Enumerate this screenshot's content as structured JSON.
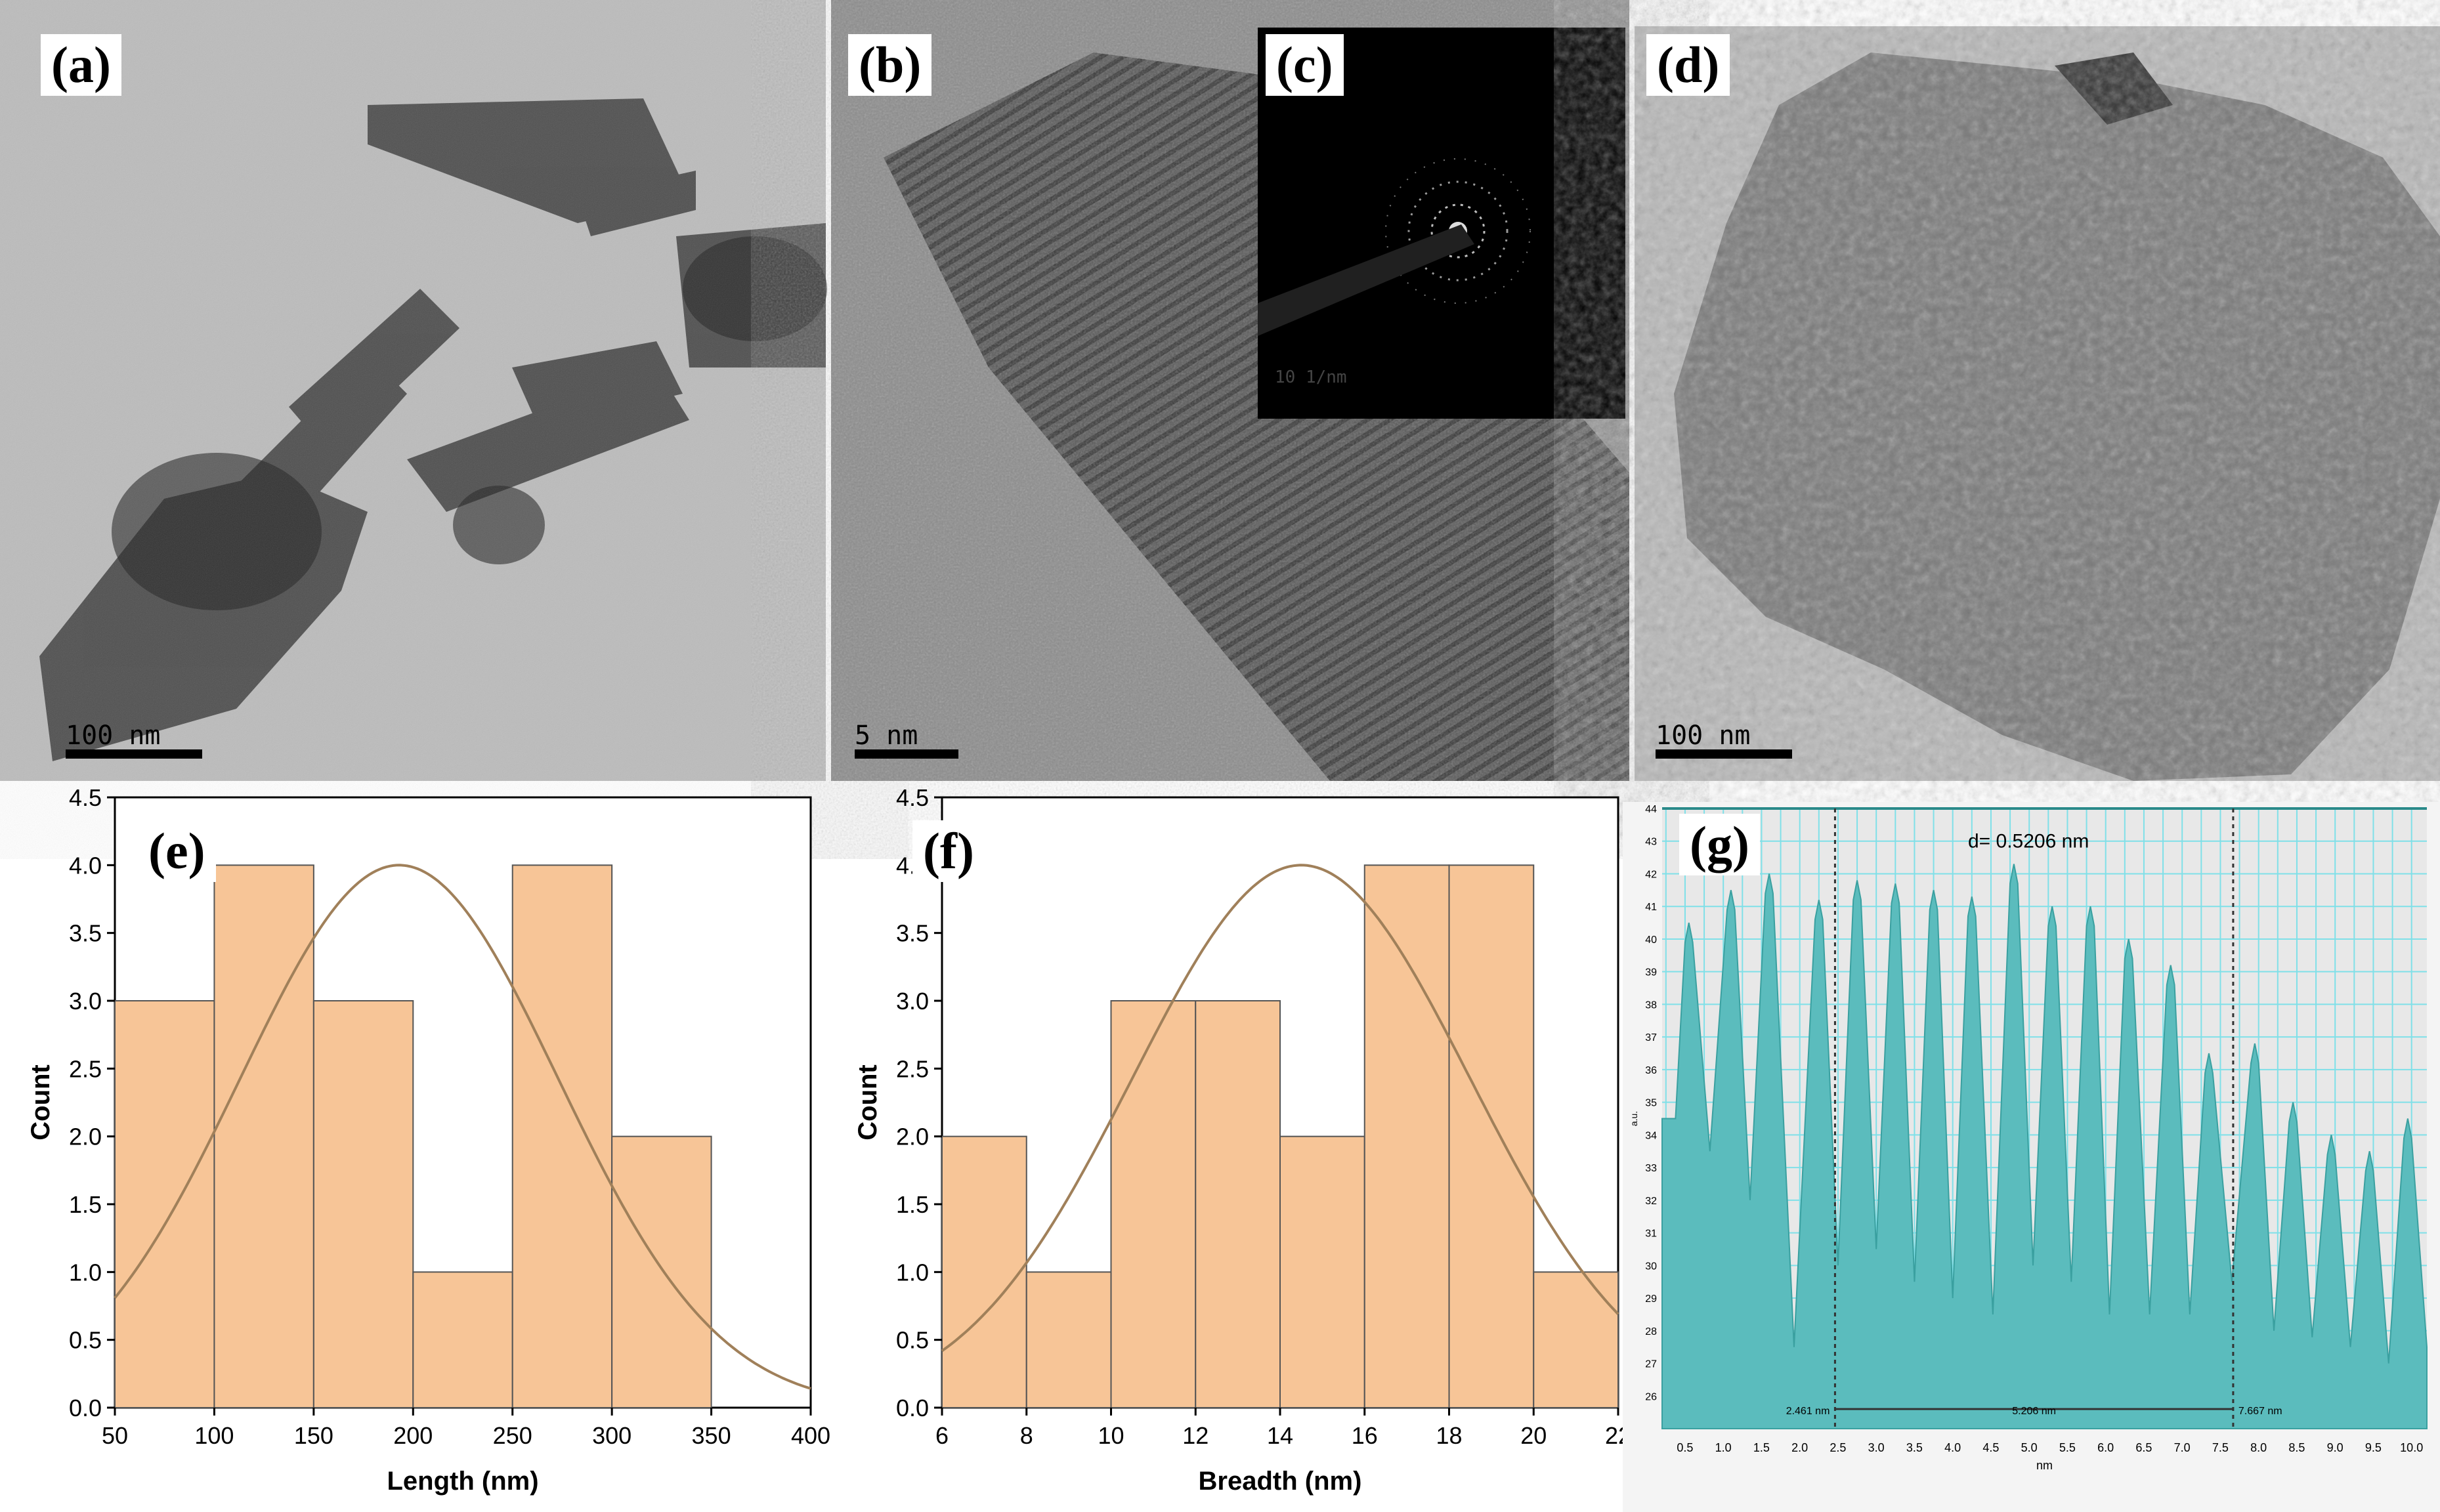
{
  "labels": {
    "a": "(a)",
    "b": "(b)",
    "c": "(c)",
    "d": "(d)",
    "e": "(e)",
    "f": "(f)",
    "g": "(g)"
  },
  "scalebars": {
    "a": "100 nm",
    "b": "5 nm",
    "c": "10 1/nm",
    "d": "100 nm"
  },
  "colors": {
    "bar_fill": "#f7c597",
    "bar_stroke": "#555555",
    "fit_curve": "#a0805a",
    "profile_fill": "#5bbcbd",
    "profile_grid": "#7fe0e8",
    "profile_bg": "#e8e8e8"
  },
  "chart_data": [
    {
      "panel": "e",
      "type": "bar",
      "xlabel": "Length (nm)",
      "ylabel": "Count",
      "xlim": [
        50,
        400
      ],
      "ylim": [
        0.0,
        4.5
      ],
      "xticks": [
        "50",
        "100",
        "150",
        "200",
        "250",
        "300",
        "350",
        "400"
      ],
      "yticks": [
        "0.0",
        "0.5",
        "1.0",
        "1.5",
        "2.0",
        "2.5",
        "3.0",
        "3.5",
        "4.0",
        "4.5"
      ],
      "bins": [
        [
          50,
          100
        ],
        [
          100,
          150
        ],
        [
          150,
          200
        ],
        [
          200,
          250
        ],
        [
          250,
          300
        ],
        [
          300,
          350
        ]
      ],
      "values": [
        3,
        4,
        3,
        1,
        4,
        2
      ],
      "fit": {
        "type": "gaussian",
        "peak": 4.0,
        "mean": 193,
        "sd": 80
      }
    },
    {
      "panel": "f",
      "type": "bar",
      "xlabel": "Breadth (nm)",
      "ylabel": "Count",
      "xlim": [
        6,
        22
      ],
      "ylim": [
        0.0,
        4.5
      ],
      "xticks": [
        "6",
        "8",
        "10",
        "12",
        "14",
        "16",
        "18",
        "20",
        "22"
      ],
      "yticks": [
        "0.0",
        "0.5",
        "1.0",
        "1.5",
        "2.0",
        "2.5",
        "3.0",
        "3.5",
        "4.0",
        "4.5"
      ],
      "bins": [
        [
          6,
          8
        ],
        [
          8,
          10
        ],
        [
          10,
          12
        ],
        [
          12,
          14
        ],
        [
          14,
          16
        ],
        [
          16,
          18
        ],
        [
          18,
          20
        ],
        [
          20,
          22
        ]
      ],
      "values": [
        2,
        1,
        3,
        3,
        2,
        4,
        4,
        1
      ],
      "fit": {
        "type": "gaussian",
        "peak": 4.0,
        "mean": 14.5,
        "sd": 4.0
      }
    },
    {
      "panel": "g",
      "type": "area",
      "xlabel": "nm",
      "ylabel": "a.u.",
      "annotation": "d= 0.5206 nm",
      "xlim": [
        0.2,
        10.2
      ],
      "ylim": [
        25,
        44
      ],
      "xticks": [
        "0.5",
        "1.0",
        "1.5",
        "2.0",
        "2.5",
        "3.0",
        "3.5",
        "4.0",
        "4.5",
        "5.0",
        "5.5",
        "6.0",
        "6.5",
        "7.0",
        "7.5",
        "8.0",
        "8.5",
        "9.0",
        "9.5",
        "10.0"
      ],
      "yticks": [
        "26",
        "27",
        "28",
        "29",
        "30",
        "31",
        "32",
        "33",
        "34",
        "35",
        "36",
        "37",
        "38",
        "39",
        "40",
        "41",
        "42",
        "43",
        "44"
      ],
      "markers": {
        "start": "2.461 nm",
        "span": "5.206 nm",
        "end": "7.667 nm"
      },
      "peaks_x": [
        0.55,
        1.1,
        1.6,
        2.25,
        2.75,
        3.25,
        3.75,
        4.25,
        4.8,
        5.3,
        5.8,
        6.3,
        6.85,
        7.35,
        7.95,
        8.45,
        8.95,
        9.45,
        9.95
      ],
      "peaks_y": [
        40.5,
        41.5,
        42.0,
        41.2,
        41.8,
        41.7,
        41.5,
        41.3,
        42.3,
        41.0,
        41.0,
        40.0,
        39.2,
        36.5,
        36.8,
        35.0,
        34.0,
        33.5,
        34.5
      ],
      "valleys_y": [
        34.5,
        33.5,
        32.0,
        27.5,
        30.0,
        30.5,
        29.5,
        29.0,
        28.5,
        30.0,
        29.5,
        28.5,
        28.5,
        28.5,
        29.5,
        28.0,
        27.8,
        27.5,
        27.0,
        27.5
      ]
    }
  ]
}
